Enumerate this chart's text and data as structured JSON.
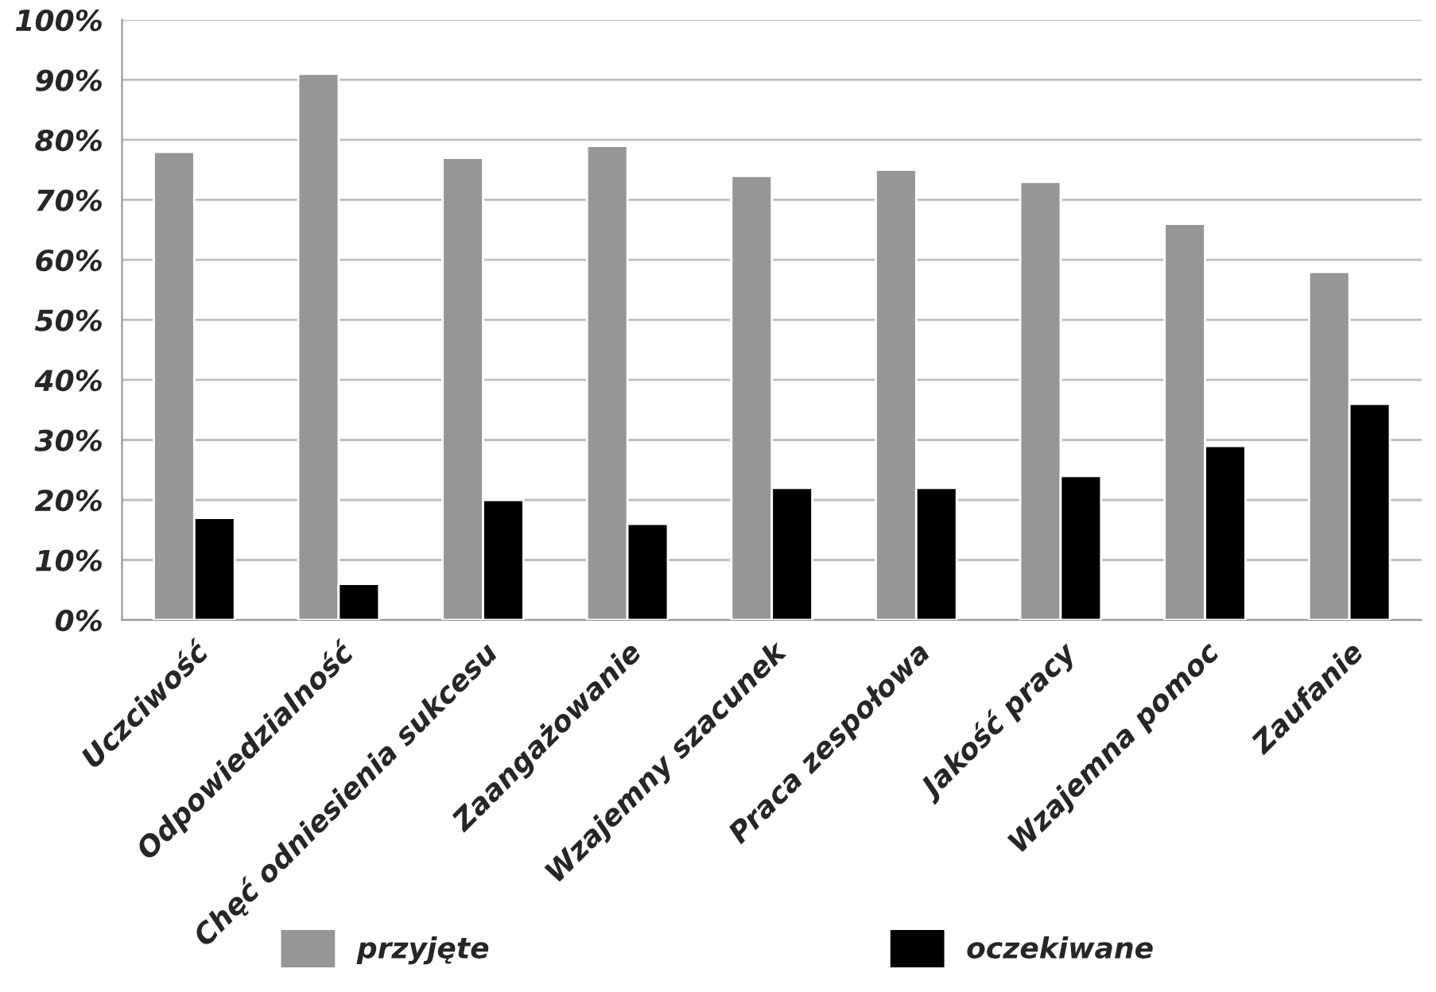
{
  "chart_data": {
    "type": "bar",
    "categories": [
      "Uczciwość",
      "Odpowiedzialność",
      "Chęć odniesienia sukcesu",
      "Zaangażowanie",
      "Wzajemny szacunek",
      "Praca zespołowa",
      "Jakość pracy",
      "Wzajemna pomoc",
      "Zaufanie"
    ],
    "series": [
      {
        "name": "przyjęte",
        "color": "#969696",
        "values": [
          78,
          91,
          77,
          79,
          74,
          75,
          73,
          66,
          58
        ]
      },
      {
        "name": "oczekiwane",
        "color": "#000000",
        "values": [
          17,
          6,
          20,
          16,
          22,
          22,
          24,
          29,
          36
        ]
      }
    ],
    "ylim": [
      0,
      100
    ],
    "yticks": [
      {
        "value": 0,
        "label": "0%"
      },
      {
        "value": 10,
        "label": "10%"
      },
      {
        "value": 20,
        "label": "20%"
      },
      {
        "value": 30,
        "label": "30%"
      },
      {
        "value": 40,
        "label": "40%"
      },
      {
        "value": 50,
        "label": "50%"
      },
      {
        "value": 60,
        "label": "60%"
      },
      {
        "value": 70,
        "label": "70%"
      },
      {
        "value": 80,
        "label": "80%"
      },
      {
        "value": 90,
        "label": "90%"
      },
      {
        "value": 100,
        "label": "100%"
      }
    ],
    "grid": "y",
    "legend": "bottom"
  }
}
